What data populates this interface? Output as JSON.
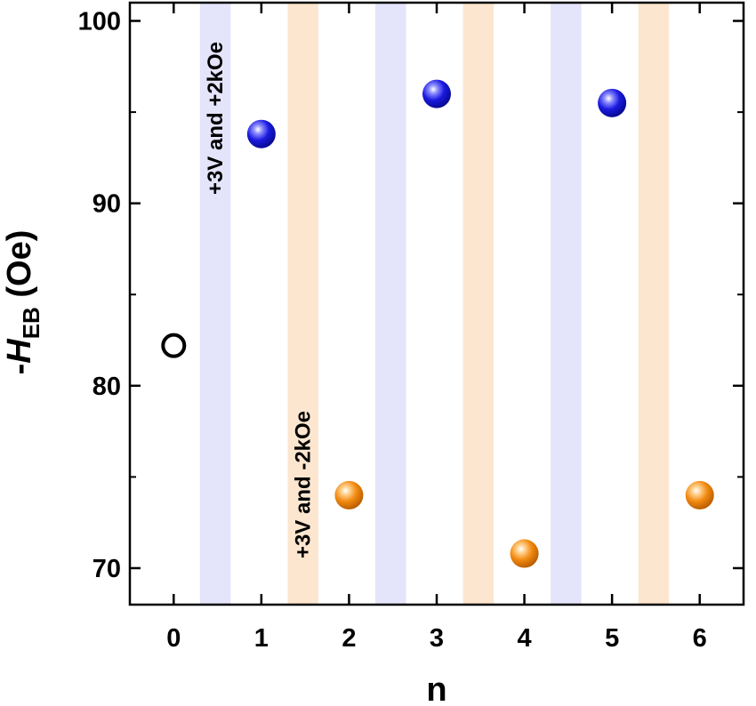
{
  "chart_data": {
    "type": "scatter",
    "xlabel": "n",
    "ylabel": {
      "prefix": "-",
      "symbol": "H",
      "subscript": "EB",
      "unit": " (Oe)"
    },
    "xlim": [
      -0.5,
      6.5
    ],
    "ylim": [
      68,
      101
    ],
    "xticks": [
      0,
      1,
      2,
      3,
      4,
      5,
      6
    ],
    "yticks": [
      70,
      80,
      90,
      100
    ],
    "yminor": [
      75,
      85,
      95
    ],
    "grid": false,
    "bands": [
      {
        "x_from": 0.3,
        "x_to": 0.65,
        "color": "#e4e4fb"
      },
      {
        "x_from": 1.3,
        "x_to": 1.65,
        "color": "#fde6cf"
      },
      {
        "x_from": 2.3,
        "x_to": 2.65,
        "color": "#e4e4fb"
      },
      {
        "x_from": 3.3,
        "x_to": 3.65,
        "color": "#fde6cf"
      },
      {
        "x_from": 4.3,
        "x_to": 4.65,
        "color": "#e4e4fb"
      },
      {
        "x_from": 5.3,
        "x_to": 5.65,
        "color": "#fde6cf"
      }
    ],
    "annotations": [
      {
        "text": "+3V and +2kOe",
        "band": 0,
        "orientation": "vertical"
      },
      {
        "text": "+3V and -2kOe",
        "band": 1,
        "orientation": "vertical"
      }
    ],
    "points": [
      {
        "x": 0,
        "y": 82.2,
        "style": "open",
        "color": "#000000"
      },
      {
        "x": 1,
        "y": 93.8,
        "style": "sphere",
        "color": "#1a1ae0"
      },
      {
        "x": 2,
        "y": 74.0,
        "style": "sphere",
        "color": "#f28a10"
      },
      {
        "x": 3,
        "y": 96.0,
        "style": "sphere",
        "color": "#1a1ae0"
      },
      {
        "x": 4,
        "y": 70.8,
        "style": "sphere",
        "color": "#f28a10"
      },
      {
        "x": 5,
        "y": 95.5,
        "style": "sphere",
        "color": "#1a1ae0"
      },
      {
        "x": 6,
        "y": 74.0,
        "style": "sphere",
        "color": "#f28a10"
      }
    ]
  }
}
